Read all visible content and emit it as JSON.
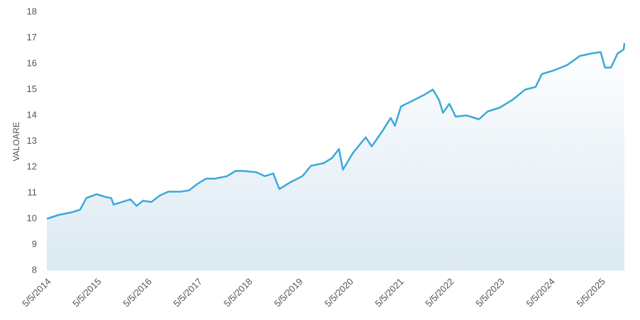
{
  "chart_data": {
    "type": "line",
    "y_label": "VALOARE",
    "x": [
      "5/5/2014",
      "8/1/2014",
      "11/1/2014",
      "1/1/2015",
      "2/15/2015",
      "5/1/2015",
      "7/1/2015",
      "8/15/2015",
      "9/1/2015",
      "11/1/2015",
      "1/1/2016",
      "2/15/2016",
      "4/1/2016",
      "6/1/2016",
      "8/1/2016",
      "10/1/2016",
      "1/1/2017",
      "3/1/2017",
      "5/1/2017",
      "7/1/2017",
      "9/1/2017",
      "12/1/2017",
      "2/1/2018",
      "4/1/2018",
      "7/1/2018",
      "9/1/2018",
      "11/1/2018",
      "12/15/2018",
      "3/1/2019",
      "6/1/2019",
      "8/1/2019",
      "11/1/2019",
      "1/1/2020",
      "2/20/2020",
      "3/20/2020",
      "6/1/2020",
      "9/1/2020",
      "10/15/2020",
      "1/1/2021",
      "3/1/2021",
      "4/1/2021",
      "5/15/2021",
      "8/1/2021",
      "11/1/2021",
      "1/1/2022",
      "2/15/2022",
      "3/15/2022",
      "5/1/2022",
      "6/15/2022",
      "9/1/2022",
      "12/1/2022",
      "2/1/2023",
      "5/1/2023",
      "8/1/2023",
      "11/1/2023",
      "1/15/2024",
      "3/1/2024",
      "6/1/2024",
      "9/1/2024",
      "12/1/2024",
      "3/1/2025",
      "5/1/2025",
      "6/1/2025",
      "7/15/2025",
      "9/1/2025",
      "10/15/2025",
      "10/20/2025"
    ],
    "series": [
      {
        "name": "VALOARE",
        "color": "#3aa9d9",
        "values": [
          10.0,
          10.15,
          10.25,
          10.35,
          10.8,
          10.95,
          10.85,
          10.8,
          10.55,
          10.65,
          10.75,
          10.5,
          10.7,
          10.65,
          10.9,
          11.05,
          11.05,
          11.1,
          11.35,
          11.55,
          11.55,
          11.65,
          11.85,
          11.85,
          11.8,
          11.65,
          11.75,
          11.15,
          11.4,
          11.65,
          12.05,
          12.15,
          12.35,
          12.7,
          11.9,
          12.55,
          13.15,
          12.8,
          13.4,
          13.9,
          13.6,
          14.35,
          14.55,
          14.8,
          15.0,
          14.6,
          14.1,
          14.45,
          13.95,
          14.0,
          13.85,
          14.15,
          14.3,
          14.6,
          15.0,
          15.1,
          15.6,
          15.75,
          15.95,
          16.3,
          16.4,
          16.45,
          15.85,
          15.85,
          16.4,
          16.55,
          16.8
        ]
      }
    ],
    "xlim": [
      "5/5/2014",
      "10/20/2025"
    ],
    "xticks": [
      "5/5/2014",
      "5/5/2015",
      "5/5/2016",
      "5/5/2017",
      "5/5/2018",
      "5/5/2019",
      "5/5/2020",
      "5/5/2021",
      "5/5/2022",
      "5/5/2023",
      "5/5/2024",
      "5/5/2025"
    ],
    "ylim": [
      8,
      18
    ],
    "yticks": [
      8,
      9,
      10,
      11,
      12,
      13,
      14,
      15,
      16,
      17,
      18
    ],
    "grid": false
  }
}
